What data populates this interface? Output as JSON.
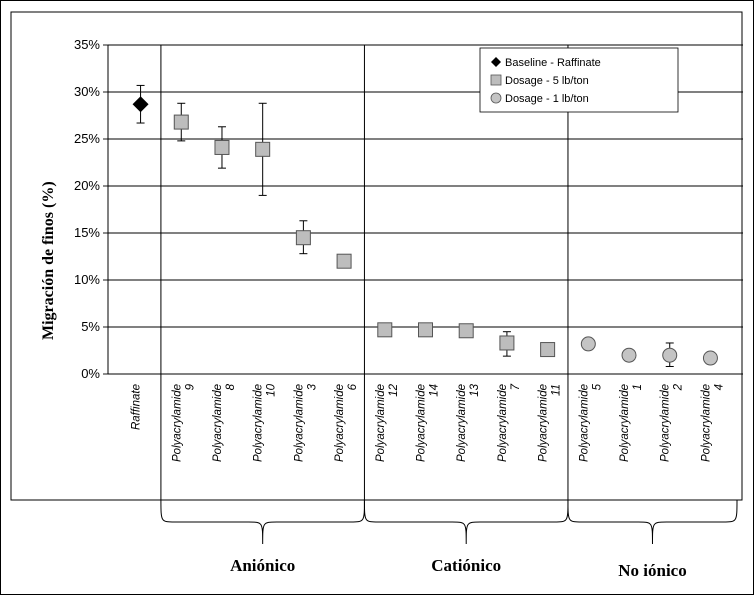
{
  "chart_data": {
    "type": "scatter",
    "ylabel": "Migración de finos (%)",
    "ylim": [
      0,
      35
    ],
    "yticks": [
      "0%",
      "5%",
      "10%",
      "15%",
      "20%",
      "25%",
      "30%",
      "35%"
    ],
    "grid": "horizontal",
    "legend_position": "top-right",
    "categories": [
      {
        "line1": "Raffinate",
        "line2": ""
      },
      {
        "line1": "Polyacrylamide",
        "line2": "9"
      },
      {
        "line1": "Polyacrylamide",
        "line2": "8"
      },
      {
        "line1": "Polyacrylamide",
        "line2": "10"
      },
      {
        "line1": "Polyacrylamide",
        "line2": "3"
      },
      {
        "line1": "Polyacrylamide",
        "line2": "6"
      },
      {
        "line1": "Polyacrylamide",
        "line2": "12"
      },
      {
        "line1": "Polyacrylamide",
        "line2": "14"
      },
      {
        "line1": "Polyacrylamide",
        "line2": "13"
      },
      {
        "line1": "Polyacrylamide",
        "line2": "7"
      },
      {
        "line1": "Polyacrylamide",
        "line2": "11"
      },
      {
        "line1": "Polyacrylamide",
        "line2": "5"
      },
      {
        "line1": "Polyacrylamide",
        "line2": "1"
      },
      {
        "line1": "Polyacrylamide",
        "line2": "2"
      },
      {
        "line1": "Polyacrylamide",
        "line2": "4"
      }
    ],
    "series": [
      {
        "name": "Baseline - Raffinate",
        "marker": "diamond",
        "points": [
          {
            "x": 0,
            "y": 28.7,
            "err": [
              26.7,
              30.7
            ]
          }
        ]
      },
      {
        "name": "Dosage - 5 lb/ton",
        "marker": "square",
        "points": [
          {
            "x": 1,
            "y": 26.8,
            "err": [
              24.8,
              28.8
            ]
          },
          {
            "x": 2,
            "y": 24.1,
            "err": [
              21.9,
              26.3
            ]
          },
          {
            "x": 3,
            "y": 23.9,
            "err": [
              19.0,
              28.8
            ]
          },
          {
            "x": 4,
            "y": 14.5,
            "err": [
              12.8,
              16.3
            ]
          },
          {
            "x": 5,
            "y": 12.0,
            "err": null
          },
          {
            "x": 6,
            "y": 4.7,
            "err": null
          },
          {
            "x": 7,
            "y": 4.7,
            "err": null
          },
          {
            "x": 8,
            "y": 4.6,
            "err": null
          },
          {
            "x": 9,
            "y": 3.3,
            "err": [
              1.9,
              4.5
            ]
          },
          {
            "x": 10,
            "y": 2.6,
            "err": null
          }
        ]
      },
      {
        "name": "Dosage - 1 lb/ton",
        "marker": "circle",
        "points": [
          {
            "x": 11,
            "y": 3.2,
            "err": null
          },
          {
            "x": 12,
            "y": 2.0,
            "err": null
          },
          {
            "x": 13,
            "y": 2.0,
            "err": [
              0.8,
              3.3
            ]
          },
          {
            "x": 14,
            "y": 1.7,
            "err": null
          }
        ]
      }
    ],
    "groups": [
      {
        "label": "Aniónico",
        "from": 1,
        "to": 5
      },
      {
        "label": "Catiónico",
        "from": 6,
        "to": 10
      },
      {
        "label": "No iónico",
        "from": 11,
        "to": 14
      }
    ],
    "colors": {
      "diamond": "#000000",
      "square_fill": "#bdbdbd",
      "circle_fill": "#c4c4c4",
      "marker_stroke": "#555555",
      "grid": "#000000"
    }
  }
}
